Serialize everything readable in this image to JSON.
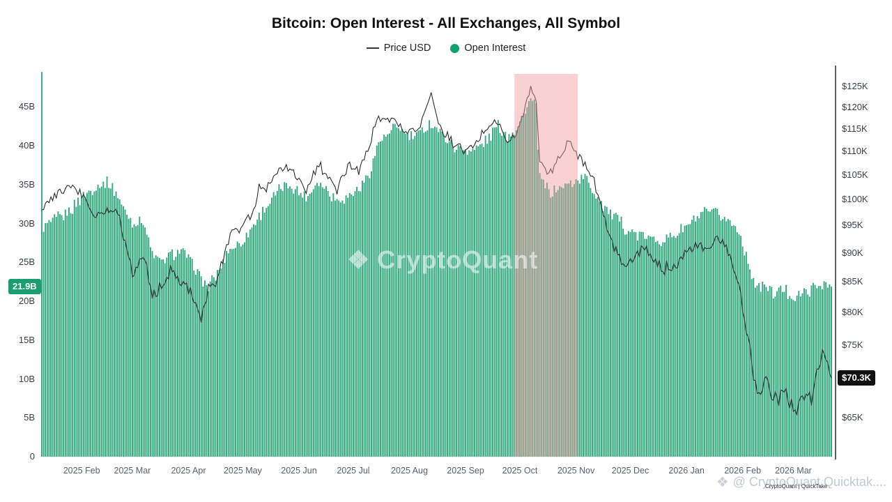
{
  "title": "Bitcoin: Open Interest - All Exchanges, All Symbol",
  "legend": [
    {
      "label": "Price USD",
      "marker": "line",
      "color": "#333333"
    },
    {
      "label": "Open Interest",
      "marker": "dot",
      "color": "#12a06e"
    }
  ],
  "badges": {
    "left": {
      "text": "21.9B",
      "value": 21.9,
      "bg": "#1a9e6f"
    },
    "right": {
      "text": "$70.3K",
      "value": 70.3,
      "bg": "#111111"
    }
  },
  "watermark": {
    "center": "CryptoQuant",
    "bottom": "@ CryptoQuant Quicktak....",
    "bottom_small": "CryptoQuant | QuickTake"
  },
  "colors": {
    "bar": "#31a87e",
    "line": "#2b2b2b",
    "axis": "#15191d"
  },
  "chart_data": {
    "type": "bar+line",
    "title": "Bitcoin: Open Interest - All Exchanges, All Symbol",
    "series_info": [
      {
        "name": "Open Interest",
        "type": "bar",
        "axis": "left",
        "unit": "USD billions",
        "color": "#31a87e"
      },
      {
        "name": "Price USD",
        "type": "line",
        "axis": "right",
        "unit": "USD thousands",
        "color": "#2b2b2b"
      }
    ],
    "x_axis": {
      "start_date": "2025-01-10",
      "end_date": "2026-03-22",
      "labels": [
        {
          "label": "2025 Feb",
          "date": "2025-02-01"
        },
        {
          "label": "2025 Mar",
          "date": "2025-03-01"
        },
        {
          "label": "2025 Apr",
          "date": "2025-04-01"
        },
        {
          "label": "2025 May",
          "date": "2025-05-01"
        },
        {
          "label": "2025 Jun",
          "date": "2025-06-01"
        },
        {
          "label": "2025 Jul",
          "date": "2025-07-01"
        },
        {
          "label": "2025 Aug",
          "date": "2025-08-01"
        },
        {
          "label": "2025 Sep",
          "date": "2025-09-01"
        },
        {
          "label": "2025 Oct",
          "date": "2025-10-01"
        },
        {
          "label": "2025 Nov",
          "date": "2025-11-01"
        },
        {
          "label": "2025 Dec",
          "date": "2025-12-01"
        },
        {
          "label": "2026 Jan",
          "date": "2026-01-01"
        },
        {
          "label": "2026 Feb",
          "date": "2026-02-01"
        },
        {
          "label": "2026 Mar",
          "date": "2026-03-01"
        }
      ]
    },
    "left_axis": {
      "name": "Open Interest (USD billions)",
      "max": 49.8,
      "ticks": [
        {
          "label": "0",
          "value": 0
        },
        {
          "label": "5B",
          "value": 5
        },
        {
          "label": "10B",
          "value": 10
        },
        {
          "label": "15B",
          "value": 15
        },
        {
          "label": "20B",
          "value": 20
        },
        {
          "label": "25B",
          "value": 25
        },
        {
          "label": "30B",
          "value": 30
        },
        {
          "label": "35B",
          "value": 35
        },
        {
          "label": "40B",
          "value": 40
        },
        {
          "label": "45B",
          "value": 45
        }
      ]
    },
    "right_axis": {
      "name": "Price USD (thousands)",
      "scale": "log",
      "min": 60.2,
      "max": 129.2,
      "ticks": [
        {
          "label": "$65K",
          "value": 65
        },
        {
          "label": "$70K",
          "value": 70
        },
        {
          "label": "$75K",
          "value": 75
        },
        {
          "label": "$80K",
          "value": 80
        },
        {
          "label": "$85K",
          "value": 85
        },
        {
          "label": "$90K",
          "value": 90
        },
        {
          "label": "$95K",
          "value": 95
        },
        {
          "label": "$100K",
          "value": 100
        },
        {
          "label": "$105K",
          "value": 105
        },
        {
          "label": "$110K",
          "value": 110
        },
        {
          "label": "$115K",
          "value": 115
        },
        {
          "label": "$120K",
          "value": 120
        },
        {
          "label": "$125K",
          "value": 125
        }
      ]
    },
    "highlight_region": {
      "start": "2025-09-28",
      "end": "2025-11-02",
      "color": "#f2989e",
      "opacity": 0.45
    },
    "series": {
      "columns": [
        "date",
        "open_interest_billion_usd",
        "price_thousand_usd"
      ],
      "points": [
        [
          "2025-01-10",
          49.5,
          98
        ],
        [
          "2025-01-11",
          29.5,
          98
        ],
        [
          "2025-01-18",
          30.5,
          101
        ],
        [
          "2025-01-25",
          31.5,
          103
        ],
        [
          "2025-02-01",
          33.5,
          101
        ],
        [
          "2025-02-08",
          34.5,
          97
        ],
        [
          "2025-02-15",
          35.5,
          97.5
        ],
        [
          "2025-02-20",
          34.0,
          98.5
        ],
        [
          "2025-02-25",
          31.5,
          92
        ],
        [
          "2025-03-02",
          30.0,
          86
        ],
        [
          "2025-03-07",
          30.5,
          90
        ],
        [
          "2025-03-12",
          26.0,
          83
        ],
        [
          "2025-03-17",
          25.0,
          84
        ],
        [
          "2025-03-22",
          26.0,
          87
        ],
        [
          "2025-03-28",
          26.5,
          85.5
        ],
        [
          "2025-04-03",
          25.0,
          83
        ],
        [
          "2025-04-08",
          23.0,
          79
        ],
        [
          "2025-04-12",
          21.8,
          83.5
        ],
        [
          "2025-04-17",
          23.5,
          85
        ],
        [
          "2025-04-23",
          26.5,
          93
        ],
        [
          "2025-04-30",
          27.5,
          95
        ],
        [
          "2025-05-06",
          29.5,
          97
        ],
        [
          "2025-05-10",
          31.0,
          102.5
        ],
        [
          "2025-05-15",
          32.5,
          103
        ],
        [
          "2025-05-22",
          34.5,
          107
        ],
        [
          "2025-05-27",
          35.0,
          106
        ],
        [
          "2025-06-01",
          34.0,
          104
        ],
        [
          "2025-06-06",
          33.5,
          102
        ],
        [
          "2025-06-11",
          35.5,
          107.5
        ],
        [
          "2025-06-16",
          34.5,
          105
        ],
        [
          "2025-06-22",
          33.0,
          101.5
        ],
        [
          "2025-06-28",
          33.5,
          107
        ],
        [
          "2025-07-04",
          34.5,
          106
        ],
        [
          "2025-07-10",
          36.5,
          111
        ],
        [
          "2025-07-15",
          40.5,
          118
        ],
        [
          "2025-07-21",
          41.5,
          117.5
        ],
        [
          "2025-07-26",
          42.5,
          116
        ],
        [
          "2025-08-01",
          41.0,
          114
        ],
        [
          "2025-08-07",
          41.5,
          116
        ],
        [
          "2025-08-13",
          43.0,
          123
        ],
        [
          "2025-08-19",
          41.5,
          114
        ],
        [
          "2025-08-25",
          40.0,
          112
        ],
        [
          "2025-08-31",
          39.5,
          110
        ],
        [
          "2025-09-06",
          39.5,
          111
        ],
        [
          "2025-09-12",
          40.5,
          115
        ],
        [
          "2025-09-18",
          42.5,
          117
        ],
        [
          "2025-09-24",
          41.5,
          112
        ],
        [
          "2025-09-30",
          42.5,
          114.5
        ],
        [
          "2025-10-04",
          44.5,
          120
        ],
        [
          "2025-10-07",
          46.0,
          125
        ],
        [
          "2025-10-10",
          45.0,
          121
        ],
        [
          "2025-10-12",
          36.0,
          108
        ],
        [
          "2025-10-17",
          34.0,
          105
        ],
        [
          "2025-10-22",
          34.5,
          108
        ],
        [
          "2025-10-27",
          35.0,
          112
        ],
        [
          "2025-11-01",
          35.5,
          110
        ],
        [
          "2025-11-06",
          36.0,
          107.5
        ],
        [
          "2025-11-11",
          34.0,
          104
        ],
        [
          "2025-11-16",
          32.5,
          97
        ],
        [
          "2025-11-21",
          31.0,
          92
        ],
        [
          "2025-11-26",
          30.0,
          88.5
        ],
        [
          "2025-12-01",
          29.0,
          88
        ],
        [
          "2025-12-07",
          28.5,
          91
        ],
        [
          "2025-12-13",
          28.0,
          89
        ],
        [
          "2025-12-19",
          28.0,
          87
        ],
        [
          "2025-12-25",
          28.5,
          88
        ],
        [
          "2025-12-31",
          29.5,
          89.5
        ],
        [
          "2026-01-06",
          30.5,
          91.5
        ],
        [
          "2026-01-12",
          31.5,
          90
        ],
        [
          "2026-01-18",
          31.0,
          93
        ],
        [
          "2026-01-24",
          30.5,
          90
        ],
        [
          "2026-01-30",
          29.0,
          84
        ],
        [
          "2026-02-04",
          25.0,
          76
        ],
        [
          "2026-02-09",
          21.5,
          68
        ],
        [
          "2026-02-14",
          22.0,
          70.5
        ],
        [
          "2026-02-19",
          21.0,
          67
        ],
        [
          "2026-02-24",
          21.5,
          68.5
        ],
        [
          "2026-03-01",
          20.5,
          66
        ],
        [
          "2026-03-06",
          21.0,
          68
        ],
        [
          "2026-03-11",
          21.5,
          67.5
        ],
        [
          "2026-03-15",
          22.0,
          72
        ],
        [
          "2026-03-18",
          22.5,
          74.5
        ],
        [
          "2026-03-20",
          21.8,
          71.5
        ],
        [
          "2026-03-22",
          21.9,
          70.3
        ]
      ]
    }
  }
}
